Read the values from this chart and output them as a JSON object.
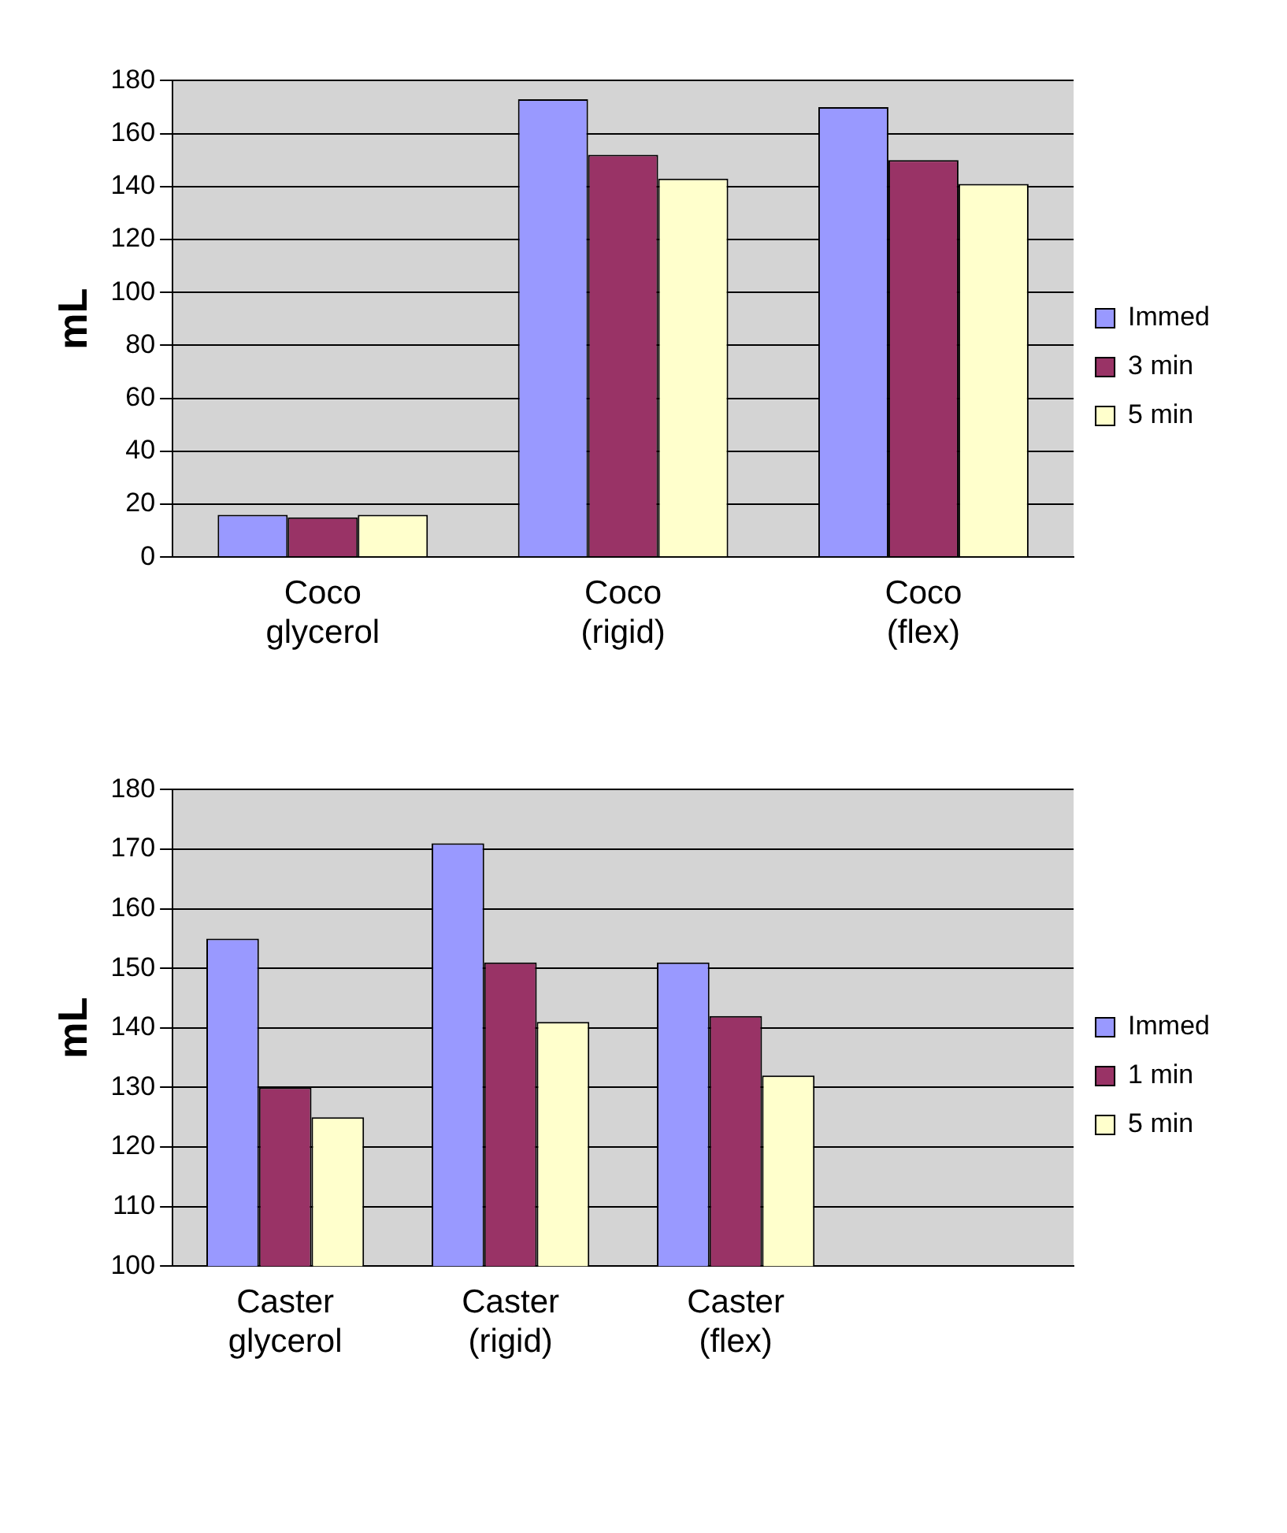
{
  "chart_data": [
    {
      "type": "bar",
      "ylabel": "mL",
      "categories": [
        "Coco glycerol",
        "Coco (rigid)",
        "Coco (flex)"
      ],
      "series": [
        {
          "name": "Immed",
          "color": "#9999ff",
          "values": [
            16,
            173,
            170
          ]
        },
        {
          "name": "3 min",
          "color": "#993366",
          "values": [
            15,
            152,
            150
          ]
        },
        {
          "name": "5 min",
          "color": "#ffffcc",
          "values": [
            16,
            143,
            141
          ]
        }
      ],
      "ylim": [
        0,
        180
      ],
      "yticks": [
        0,
        20,
        40,
        60,
        80,
        100,
        120,
        140,
        160,
        180
      ],
      "grid": "y",
      "legend": "right"
    },
    {
      "type": "bar",
      "ylabel": "mL",
      "categories": [
        "Caster glycerol",
        "Caster (rigid)",
        "Caster (flex)",
        null
      ],
      "series": [
        {
          "name": "Immed",
          "color": "#9999ff",
          "values": [
            155,
            171,
            151,
            null
          ]
        },
        {
          "name": "1 min",
          "color": "#993366",
          "values": [
            130,
            151,
            142,
            null
          ]
        },
        {
          "name": "5 min",
          "color": "#ffffcc",
          "values": [
            125,
            141,
            132,
            null
          ]
        }
      ],
      "ylim": [
        100,
        180
      ],
      "yticks": [
        100,
        110,
        120,
        130,
        140,
        150,
        160,
        170,
        180
      ],
      "grid": "y",
      "legend": "right"
    }
  ]
}
